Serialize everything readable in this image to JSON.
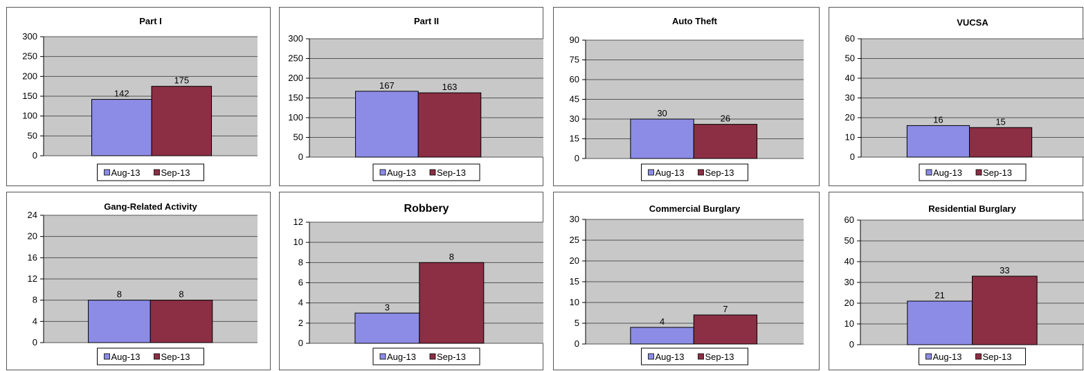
{
  "colors": {
    "plot_bg": "#c8c8c8",
    "aug": "#8c8ce6",
    "sep": "#8c2e44",
    "grid": "#555555"
  },
  "legend": [
    "Aug-13",
    "Sep-13"
  ],
  "chart_data": [
    {
      "type": "bar",
      "title": "Part I",
      "categories": [
        "Aug-13",
        "Sep-13"
      ],
      "values": [
        142,
        175
      ],
      "ylim": [
        0,
        300
      ],
      "yticks": [
        0,
        50,
        100,
        150,
        200,
        250,
        300
      ],
      "grid": true,
      "legend": "bottom"
    },
    {
      "type": "bar",
      "title": "Part II",
      "categories": [
        "Aug-13",
        "Sep-13"
      ],
      "values": [
        167,
        163
      ],
      "ylim": [
        0,
        300
      ],
      "yticks": [
        0,
        50,
        100,
        150,
        200,
        250,
        300
      ],
      "grid": true,
      "legend": "bottom"
    },
    {
      "type": "bar",
      "title": "Auto Theft",
      "categories": [
        "Aug-13",
        "Sep-13"
      ],
      "values": [
        30,
        26
      ],
      "ylim": [
        0,
        90
      ],
      "yticks": [
        0,
        15,
        30,
        45,
        60,
        75,
        90
      ],
      "grid": true,
      "legend": "bottom"
    },
    {
      "type": "bar",
      "title": "VUCSA",
      "categories": [
        "Aug-13",
        "Sep-13"
      ],
      "values": [
        16,
        15
      ],
      "ylim": [
        0,
        60
      ],
      "yticks": [
        0,
        10,
        20,
        30,
        40,
        50,
        60
      ],
      "grid": true,
      "legend": "bottom"
    },
    {
      "type": "bar",
      "title": "Gang-Related Activity",
      "categories": [
        "Aug-13",
        "Sep-13"
      ],
      "values": [
        8,
        8
      ],
      "ylim": [
        0,
        24
      ],
      "yticks": [
        0,
        4,
        8,
        12,
        16,
        20,
        24
      ],
      "grid": true,
      "legend": "bottom"
    },
    {
      "type": "bar",
      "title": "Robbery",
      "categories": [
        "Aug-13",
        "Sep-13"
      ],
      "values": [
        3,
        8
      ],
      "ylim": [
        0,
        12
      ],
      "yticks": [
        0,
        2,
        4,
        6,
        8,
        10,
        12
      ],
      "grid": true,
      "legend": "bottom"
    },
    {
      "type": "bar",
      "title": "Commercial Burglary",
      "categories": [
        "Aug-13",
        "Sep-13"
      ],
      "values": [
        4,
        7
      ],
      "ylim": [
        0,
        30
      ],
      "yticks": [
        0,
        5,
        10,
        15,
        20,
        25,
        30
      ],
      "grid": true,
      "legend": "bottom"
    },
    {
      "type": "bar",
      "title": "Residential Burglary",
      "categories": [
        "Aug-13",
        "Sep-13"
      ],
      "values": [
        21,
        33
      ],
      "ylim": [
        0,
        60
      ],
      "yticks": [
        0,
        10,
        20,
        30,
        40,
        50,
        60
      ],
      "grid": true,
      "legend": "bottom"
    }
  ]
}
